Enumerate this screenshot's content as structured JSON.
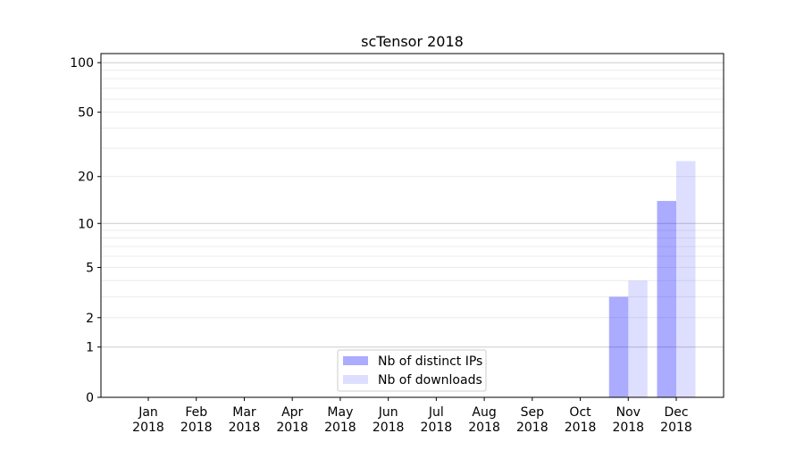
{
  "chart_data": {
    "type": "bar",
    "title": "scTensor 2018",
    "xlabel": "",
    "ylabel": "",
    "yscale": "log(1+y)",
    "ylim": [
      0,
      113
    ],
    "yticks": [
      0,
      1,
      2,
      5,
      10,
      20,
      50,
      100
    ],
    "ytick_labels": [
      "0",
      "1",
      "2",
      "5",
      "10",
      "20",
      "50",
      "100"
    ],
    "categories": [
      "Jan\n2018",
      "Feb\n2018",
      "Mar\n2018",
      "Apr\n2018",
      "May\n2018",
      "Jun\n2018",
      "Jul\n2018",
      "Aug\n2018",
      "Sep\n2018",
      "Oct\n2018",
      "Nov\n2018",
      "Dec\n2018"
    ],
    "series": [
      {
        "name": "Nb of distinct IPs",
        "color": "#aaaaff",
        "values": [
          0,
          0,
          0,
          0,
          0,
          0,
          0,
          0,
          0,
          0,
          3,
          14
        ]
      },
      {
        "name": "Nb of downloads",
        "color": "#ddddff",
        "values": [
          0,
          0,
          0,
          0,
          0,
          0,
          0,
          0,
          0,
          0,
          4,
          25
        ]
      }
    ],
    "grid": true,
    "legend": "bottom-center"
  }
}
